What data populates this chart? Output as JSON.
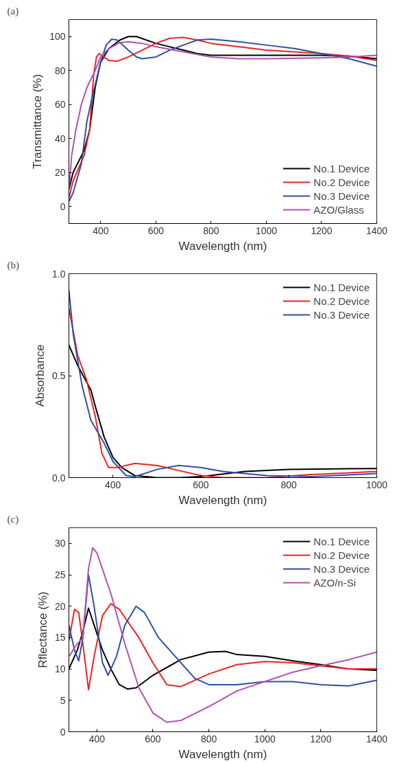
{
  "chart_data": [
    {
      "type": "line",
      "title": "(a)",
      "xlabel": "Wavelength (nm)",
      "ylabel": "Transmittance (%)",
      "xlim": [
        285,
        1400
      ],
      "ylim": [
        -10,
        110
      ],
      "xticks": [
        400,
        600,
        800,
        1000,
        1200,
        1400
      ],
      "yticks": [
        0,
        20,
        40,
        60,
        80,
        100
      ],
      "grid": false,
      "legend": "bottom right",
      "marker": "none",
      "line_style": "solid",
      "series": [
        {
          "name": "No.1 Device",
          "color": "#000000",
          "x": [
            285,
            300,
            340,
            360,
            380,
            400,
            430,
            470,
            500,
            530,
            600,
            700,
            750,
            800,
            1000,
            1200,
            1300,
            1400
          ],
          "values": [
            10,
            20,
            33,
            45,
            70,
            85,
            93,
            98,
            100,
            100,
            96,
            92,
            90,
            89,
            89,
            89,
            88.5,
            87
          ]
        },
        {
          "name": "No.2 Device",
          "color": "#ee2222",
          "x": [
            285,
            300,
            340,
            360,
            375,
            385,
            395,
            410,
            430,
            460,
            500,
            550,
            600,
            650,
            700,
            750,
            800,
            900,
            1000,
            1200,
            1300,
            1400
          ],
          "values": [
            5,
            15,
            30,
            45,
            78,
            88,
            90,
            88,
            86,
            85.5,
            88,
            92,
            96,
            99,
            99.5,
            98,
            96,
            94,
            92,
            90,
            88.5,
            86
          ]
        },
        {
          "name": "No.3 Device",
          "color": "#2d4fa8",
          "x": [
            285,
            300,
            330,
            350,
            370,
            400,
            420,
            440,
            460,
            500,
            530,
            550,
            600,
            650,
            700,
            750,
            800,
            900,
            1000,
            1100,
            1200,
            1300,
            1400
          ],
          "values": [
            3,
            8,
            25,
            50,
            65,
            85,
            95,
            98.5,
            98,
            92,
            88,
            87,
            88,
            92,
            95,
            98,
            98.5,
            97,
            95,
            93,
            90,
            87,
            82.5
          ]
        },
        {
          "name": "AZO/Glass",
          "color": "#b050b0",
          "x": [
            285,
            295,
            310,
            330,
            350,
            380,
            400,
            430,
            470,
            500,
            550,
            600,
            700,
            800,
            900,
            1000,
            1200,
            1300,
            1400
          ],
          "values": [
            10,
            30,
            45,
            60,
            70,
            80,
            88,
            93,
            96.5,
            97,
            96,
            94,
            91,
            88,
            87,
            87,
            87.5,
            88,
            89
          ]
        }
      ]
    },
    {
      "type": "line",
      "title": "(b)",
      "xlabel": "Wavelength (nm)",
      "ylabel": "Absorbance",
      "xlim": [
        300,
        1000
      ],
      "ylim": [
        0,
        1
      ],
      "xticks": [
        400,
        600,
        800,
        1000
      ],
      "yticks": [
        {
          "value": 0,
          "label": "0.0"
        },
        0.5,
        {
          "value": 1,
          "label": "1.0"
        }
      ],
      "grid": false,
      "legend": "top right",
      "marker": "none",
      "line_style": "solid",
      "series": [
        {
          "name": "No.1 Device",
          "color": "#000000",
          "x": [
            300,
            320,
            340,
            350,
            360,
            380,
            400,
            420,
            450,
            500,
            550,
            600,
            700,
            800,
            1000
          ],
          "values": [
            0.65,
            0.55,
            0.47,
            0.43,
            0.35,
            0.2,
            0.1,
            0.05,
            0.01,
            0,
            0,
            0.005,
            0.03,
            0.04,
            0.045
          ]
        },
        {
          "name": "No.2 Device",
          "color": "#ee2222",
          "x": [
            300,
            320,
            340,
            360,
            375,
            390,
            410,
            450,
            500,
            550,
            600,
            650,
            750,
            850,
            1000
          ],
          "values": [
            0.83,
            0.6,
            0.48,
            0.3,
            0.12,
            0.05,
            0.05,
            0.07,
            0.06,
            0.035,
            0.01,
            0,
            0,
            0.015,
            0.03
          ]
        },
        {
          "name": "No.3 Device",
          "color": "#2d4fa8",
          "x": [
            300,
            310,
            330,
            350,
            380,
            400,
            430,
            450,
            500,
            550,
            600,
            650,
            750,
            850,
            1000
          ],
          "values": [
            0.92,
            0.7,
            0.45,
            0.28,
            0.17,
            0.08,
            0.01,
            0.005,
            0.04,
            0.06,
            0.05,
            0.03,
            0.01,
            0.005,
            0.02
          ]
        }
      ]
    },
    {
      "type": "line",
      "title": "(c)",
      "xlabel": "Wavelength (nm)",
      "ylabel": "Rflectance (%)",
      "xlim": [
        300,
        1400
      ],
      "ylim": [
        0,
        32.5
      ],
      "xticks": [
        400,
        600,
        800,
        1000,
        1200,
        1400
      ],
      "yticks": [
        0,
        5,
        10,
        15,
        20,
        25,
        30
      ],
      "grid": false,
      "legend": "top right",
      "marker": "none",
      "line_style": "solid",
      "series": [
        {
          "name": "No.1 Device",
          "color": "#000000",
          "x": [
            300,
            330,
            350,
            370,
            390,
            420,
            450,
            480,
            510,
            540,
            600,
            700,
            800,
            860,
            900,
            1000,
            1100,
            1200,
            1300,
            1400
          ],
          "values": [
            10,
            13,
            16,
            19.7,
            17,
            13,
            10,
            7.5,
            6.8,
            7,
            9,
            11.5,
            12.7,
            12.8,
            12.3,
            12,
            11.3,
            10.7,
            10,
            9.8
          ]
        },
        {
          "name": "No.2 Device",
          "color": "#ee2222",
          "x": [
            300,
            320,
            335,
            350,
            370,
            390,
            420,
            450,
            480,
            550,
            600,
            650,
            700,
            800,
            900,
            1000,
            1100,
            1200,
            1300,
            1400
          ],
          "values": [
            14.5,
            19.5,
            19,
            14,
            6.7,
            12,
            18.5,
            20.4,
            19.5,
            15,
            11,
            7.5,
            7.2,
            9.2,
            10.7,
            11.2,
            11,
            10.5,
            10,
            10
          ]
        },
        {
          "name": "No.3 Device",
          "color": "#2d4fa8",
          "x": [
            300,
            320,
            335,
            350,
            370,
            390,
            420,
            440,
            470,
            500,
            540,
            570,
            620,
            700,
            750,
            800,
            900,
            1000,
            1100,
            1200,
            1300,
            1400
          ],
          "values": [
            17,
            13,
            11.3,
            15,
            25,
            20,
            11,
            9,
            12,
            17,
            20,
            19,
            15,
            11,
            8.5,
            7.5,
            7.5,
            8,
            8,
            7.5,
            7.3,
            8.2
          ]
        },
        {
          "name": "AZO/n-Si",
          "color": "#b050b0",
          "x": [
            300,
            330,
            350,
            370,
            385,
            400,
            450,
            500,
            550,
            600,
            650,
            700,
            800,
            900,
            1000,
            1100,
            1200,
            1300,
            1400
          ],
          "values": [
            12,
            14,
            15,
            26,
            29.3,
            28.5,
            22,
            14,
            7,
            3,
            1.5,
            1.8,
            4,
            6.5,
            8,
            9.5,
            10.5,
            11.5,
            12.7
          ]
        }
      ]
    }
  ]
}
